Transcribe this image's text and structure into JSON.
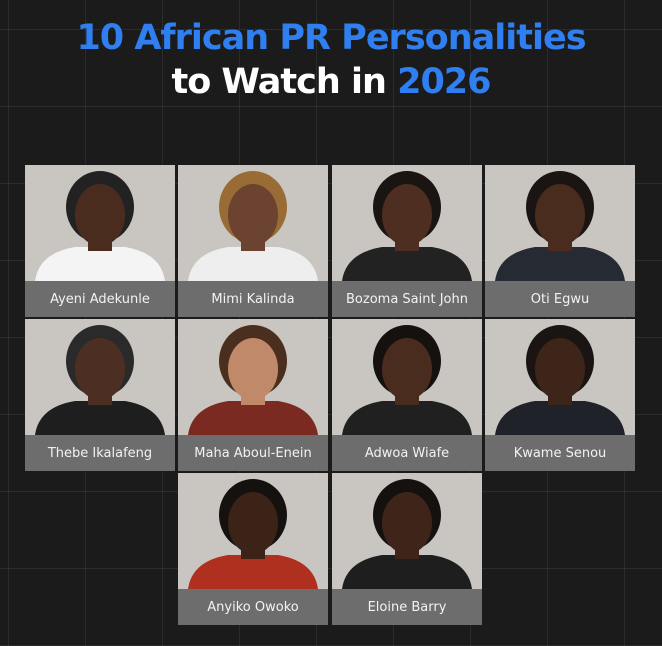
{
  "title": {
    "line1": "10 African PR Personalities",
    "line2_prefix": "to Watch in",
    "line2_highlight": "2026"
  },
  "colors": {
    "accent": "#2f7ff0",
    "background": "#1b1b1b",
    "label_bar": "#6d6d6d"
  },
  "people": [
    {
      "name": "Ayeni Adekunle",
      "skin": "#4a2c1e",
      "top": "#f4f4f4",
      "hair": "#222"
    },
    {
      "name": "Mimi Kalinda",
      "skin": "#6b4330",
      "top": "#eeeeee",
      "hair": "#9a6c35"
    },
    {
      "name": "Bozoma Saint John",
      "skin": "#4d2e20",
      "top": "#222222",
      "hair": "#1a1412"
    },
    {
      "name": "Oti Egwu",
      "skin": "#4a2c1f",
      "top": "#252a33",
      "hair": "#1a1412"
    },
    {
      "name": "Thebe Ikalafeng",
      "skin": "#4c2e22",
      "top": "#1e1e1e",
      "hair": "#2a2a2a"
    },
    {
      "name": "Maha Aboul-Enein",
      "skin": "#c08a6a",
      "top": "#7a2a20",
      "hair": "#4a2e1e"
    },
    {
      "name": "Adwoa Wiafe",
      "skin": "#4a2c1f",
      "top": "#202020",
      "hair": "#15110f"
    },
    {
      "name": "Kwame Senou",
      "skin": "#3e2519",
      "top": "#1f2228",
      "hair": "#1a1412"
    },
    {
      "name": "Anyiko Owoko",
      "skin": "#3b2318",
      "top": "#b03020",
      "hair": "#15110f"
    },
    {
      "name": "Eloine Barry",
      "skin": "#3f2519",
      "top": "#1e1e1e",
      "hair": "#15110f"
    }
  ]
}
